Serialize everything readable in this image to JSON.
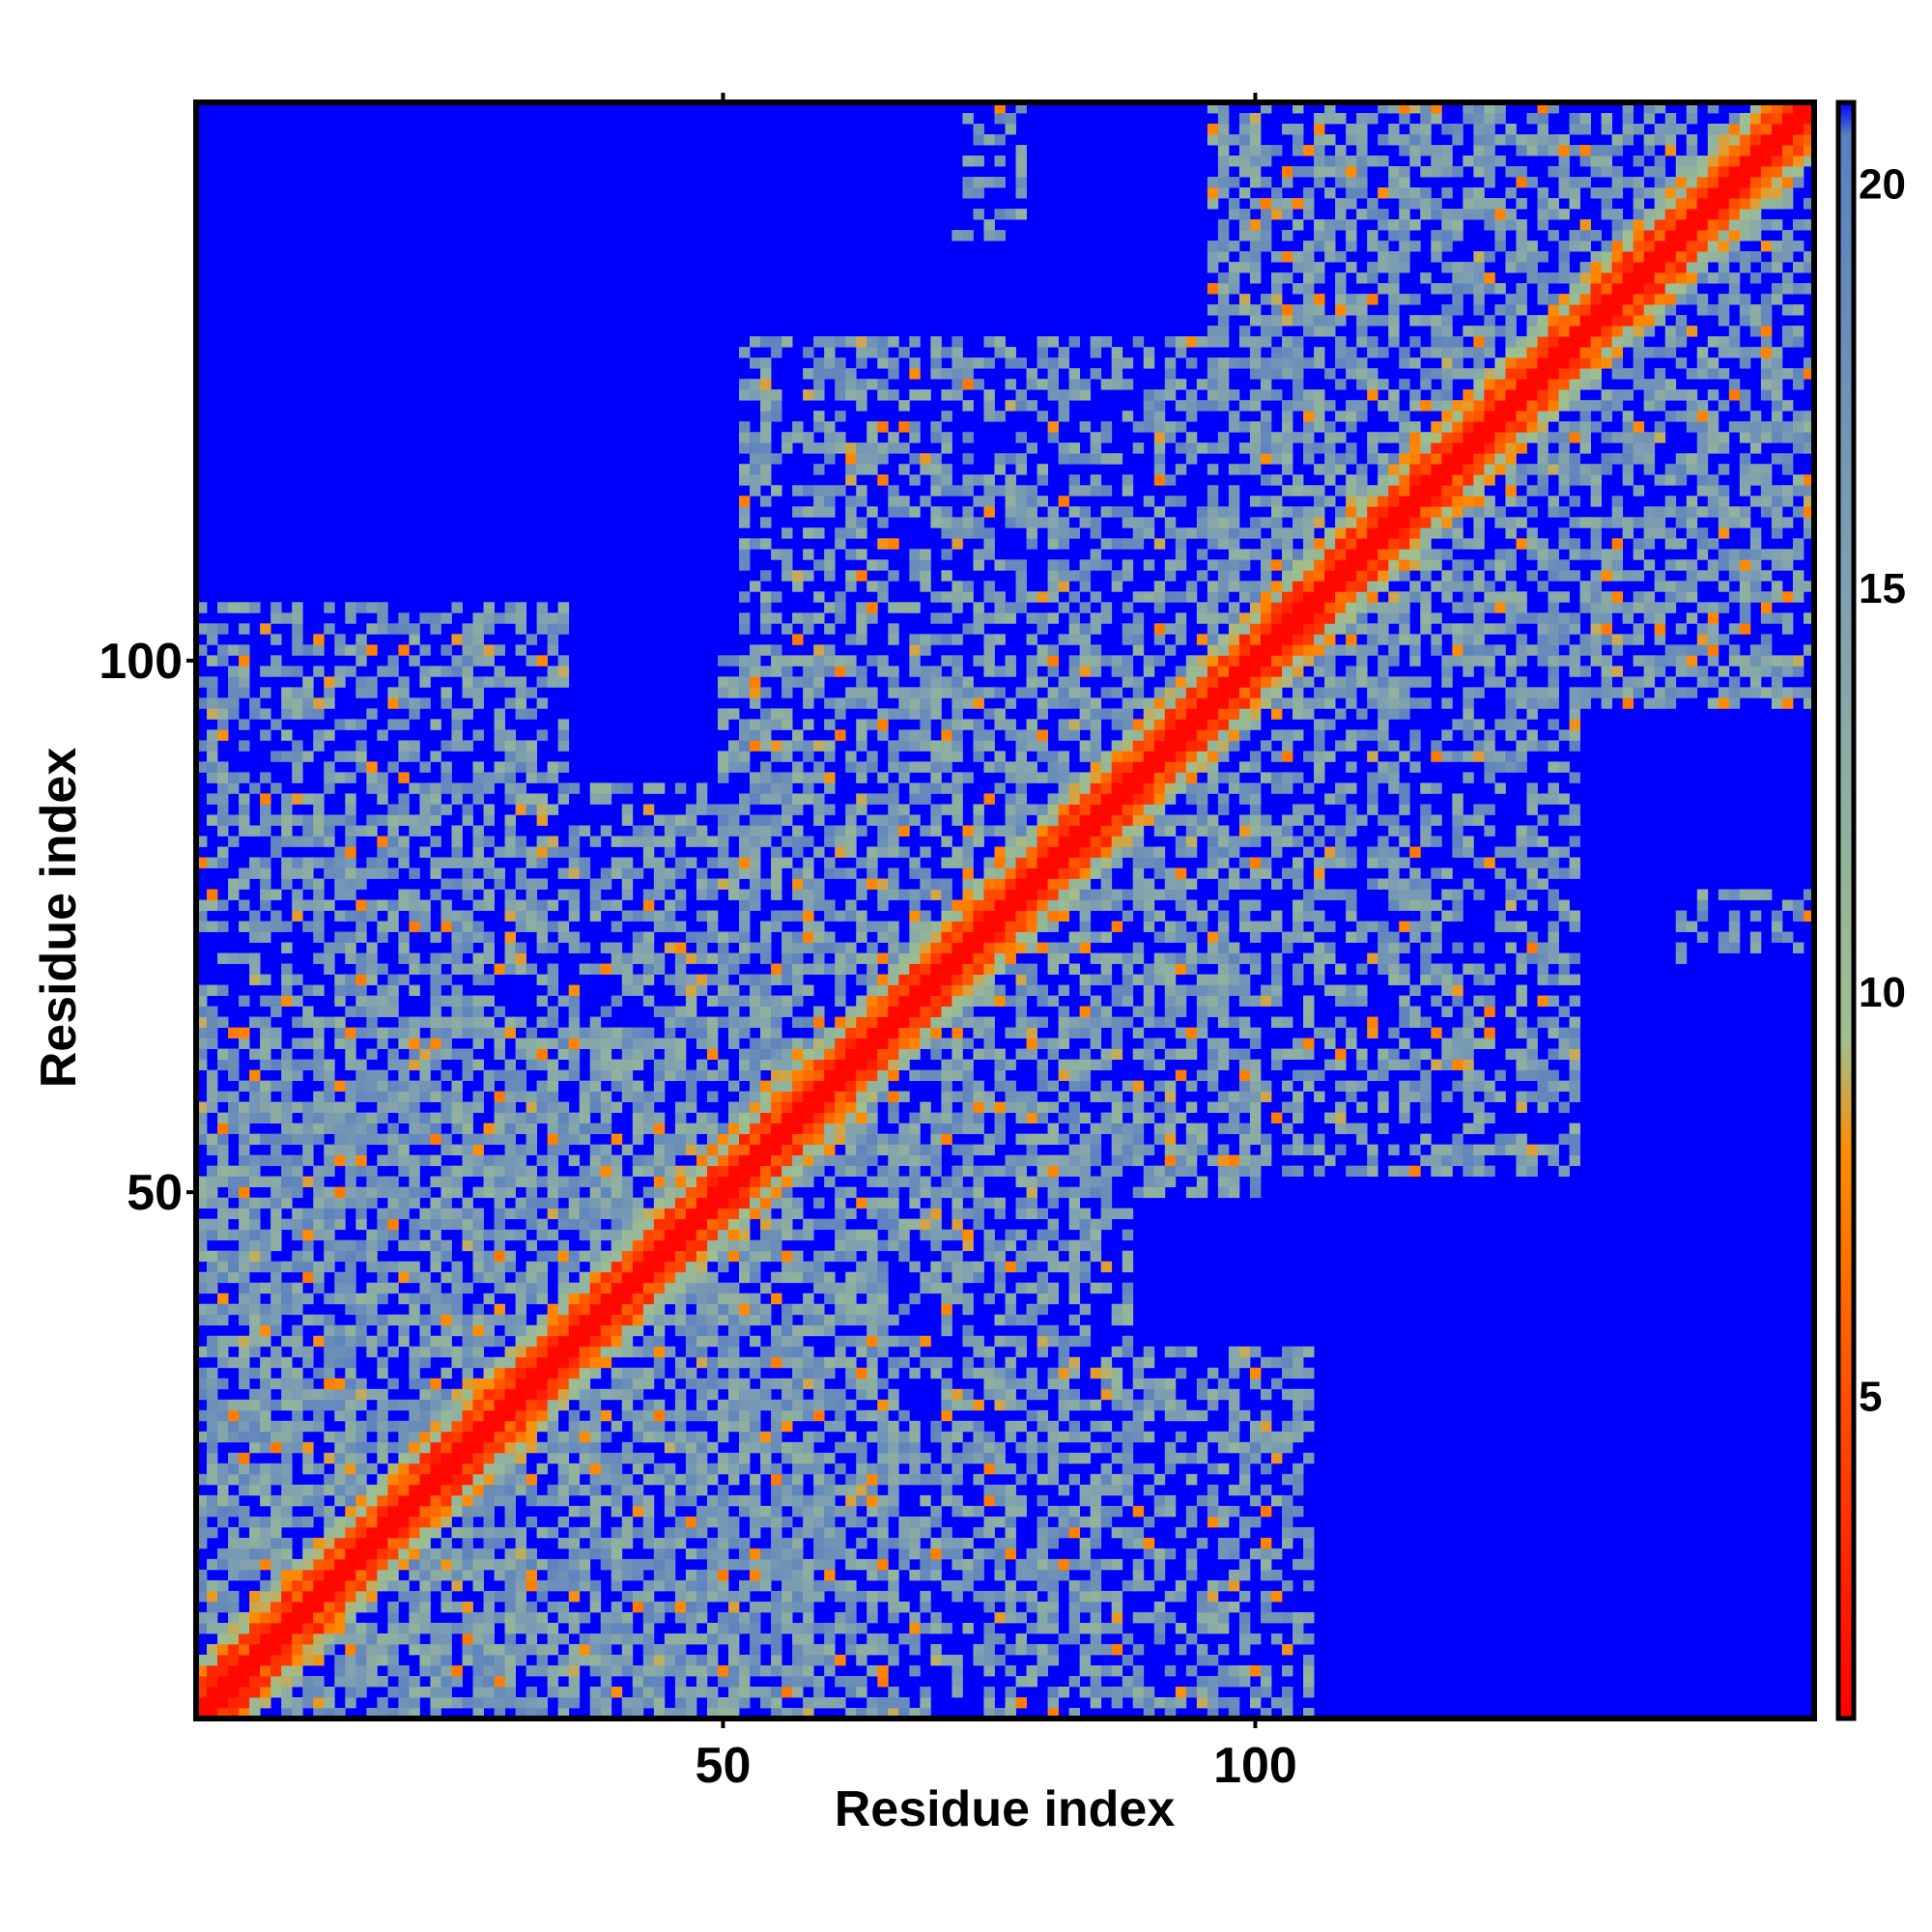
{
  "chart_data": {
    "type": "heatmap",
    "title": "",
    "xlabel": "Residue index",
    "ylabel": "Residue index",
    "n_residues": 152,
    "xlim": [
      1,
      152
    ],
    "ylim": [
      1,
      152
    ],
    "x_ticks": [
      {
        "value": 50,
        "label": "50"
      },
      {
        "value": 100,
        "label": "100"
      }
    ],
    "y_ticks": [
      {
        "value": 50,
        "label": "50"
      },
      {
        "value": 100,
        "label": "100"
      }
    ],
    "colorbar": {
      "range": [
        1,
        21
      ],
      "ticks": [
        {
          "value": 5,
          "label": "5"
        },
        {
          "value": 10,
          "label": "10"
        },
        {
          "value": 15,
          "label": "15"
        },
        {
          "value": 20,
          "label": "20"
        }
      ],
      "colors": [
        "#ff0000",
        "#ff8c00",
        "#9fbf8f",
        "#7fa0b0",
        "#5a7fc0",
        "#0000ff"
      ],
      "stops": [
        0,
        0.35,
        0.42,
        0.7,
        0.98,
        1.0
      ]
    },
    "contact_regions": [
      {
        "x": [
          1,
          66
        ],
        "y": [
          1,
          66
        ],
        "level": 0.78
      },
      {
        "x": [
          50,
          100
        ],
        "y": [
          50,
          100
        ],
        "level": 0.68
      },
      {
        "x": [
          96,
          152
        ],
        "y": [
          96,
          152
        ],
        "level": 0.68
      },
      {
        "x": [
          1,
          66
        ],
        "y": [
          65,
          88
        ],
        "level": 0.62
      },
      {
        "x": [
          65,
          88
        ],
        "y": [
          1,
          66
        ],
        "level": 0.62
      },
      {
        "x": [
          1,
          35
        ],
        "y": [
          88,
          105
        ],
        "level": 0.55
      },
      {
        "x": [
          88,
          105
        ],
        "y": [
          1,
          35
        ],
        "level": 0.55
      },
      {
        "x": [
          70,
          100
        ],
        "y": [
          1,
          30
        ],
        "level": 0.45
      },
      {
        "x": [
          1,
          30
        ],
        "y": [
          70,
          100
        ],
        "level": 0.45
      },
      {
        "x": [
          52,
          130
        ],
        "y": [
          70,
          130
        ],
        "level": 0.5
      },
      {
        "x": [
          70,
          130
        ],
        "y": [
          52,
          130
        ],
        "level": 0.5
      },
      {
        "x": [
          72,
          78
        ],
        "y": [
          140,
          152
        ],
        "level": 0.45
      },
      {
        "x": [
          140,
          152
        ],
        "y": [
          72,
          78
        ],
        "level": 0.45
      }
    ]
  }
}
